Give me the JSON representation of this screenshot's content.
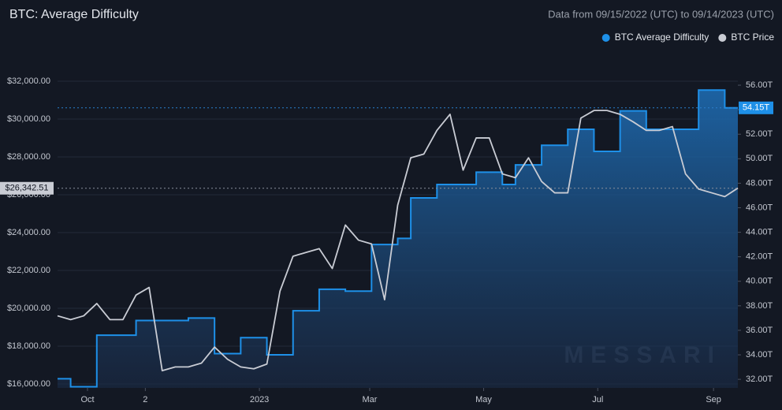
{
  "chart_data": {
    "type": "line",
    "title": "BTC: Average Difficulty",
    "subtitle": "Data from 09/15/2022 (UTC) to 09/14/2023 (UTC)",
    "watermark": "MESSARI",
    "xlim": [
      0,
      52
    ],
    "xticks": [
      {
        "value": 2.29,
        "label": "Oct"
      },
      {
        "value": 6.71,
        "label": "2"
      },
      {
        "value": 15.43,
        "label": "2023"
      },
      {
        "value": 23.86,
        "label": "Mar"
      },
      {
        "value": 32.57,
        "label": "May"
      },
      {
        "value": 41.29,
        "label": "Jul"
      },
      {
        "value": 50.14,
        "label": "Sep"
      }
    ],
    "ylim": [
      15790,
      32540
    ],
    "yticks": [
      {
        "value": 16000,
        "label": "$16,000.00"
      },
      {
        "value": 18000,
        "label": "$18,000.00"
      },
      {
        "value": 20000,
        "label": "$20,000.00"
      },
      {
        "value": 22000,
        "label": "$22,000.00"
      },
      {
        "value": 24000,
        "label": "$24,000.00"
      },
      {
        "value": 26000,
        "label": "$26,000.00"
      },
      {
        "value": 28000,
        "label": "$28,000.00"
      },
      {
        "value": 30000,
        "label": "$30,000.00"
      },
      {
        "value": 32000,
        "label": "$32,000.00"
      }
    ],
    "y2lim": [
      31.3,
      57.16
    ],
    "y2ticks": [
      {
        "value": 32,
        "label": "32.00T"
      },
      {
        "value": 34,
        "label": "34.00T"
      },
      {
        "value": 36,
        "label": "36.00T"
      },
      {
        "value": 38,
        "label": "38.00T"
      },
      {
        "value": 40,
        "label": "40.00T"
      },
      {
        "value": 42,
        "label": "42.00T"
      },
      {
        "value": 44,
        "label": "44.00T"
      },
      {
        "value": 46,
        "label": "46.00T"
      },
      {
        "value": 48,
        "label": "48.00T"
      },
      {
        "value": 50,
        "label": "50.00T"
      },
      {
        "value": 52,
        "label": "52.00T"
      },
      {
        "value": 54,
        "label": "54.00T"
      },
      {
        "value": 56,
        "label": "56.00T"
      }
    ],
    "grid": true,
    "legend": "top-right",
    "last_price": {
      "value": 26342.51,
      "label": "$26,342.51"
    },
    "last_difficulty": {
      "value": 54.15,
      "label": "54.15T"
    },
    "series": [
      {
        "name": "BTC Average Difficulty",
        "color": "#1e90e8",
        "axis": "y2",
        "style": "step-area",
        "values": [
          32.05,
          31.4,
          31.4,
          35.6,
          35.6,
          35.6,
          36.8,
          36.8,
          36.8,
          36.8,
          37.0,
          37.0,
          34.1,
          34.1,
          35.4,
          35.4,
          34.0,
          34.0,
          37.6,
          37.6,
          39.35,
          39.35,
          39.2,
          39.2,
          43.0,
          43.0,
          43.5,
          46.8,
          46.8,
          47.9,
          47.9,
          47.9,
          48.9,
          48.9,
          47.9,
          49.5,
          49.5,
          51.1,
          51.1,
          52.4,
          52.4,
          50.6,
          50.6,
          53.9,
          53.9,
          52.4,
          52.4,
          52.4,
          52.4,
          55.6,
          55.6,
          54.15,
          54.15
        ]
      },
      {
        "name": "BTC Price",
        "color": "#c9ccd4",
        "axis": "y",
        "style": "line",
        "values": [
          19600,
          19400,
          19600,
          20250,
          19400,
          19400,
          20700,
          21100,
          16700,
          16900,
          16900,
          17100,
          17950,
          17300,
          16900,
          16800,
          17050,
          20900,
          22750,
          22950,
          23150,
          22100,
          24400,
          23600,
          23400,
          20450,
          25450,
          27950,
          28150,
          29400,
          30250,
          27300,
          29000,
          29000,
          27100,
          26900,
          27950,
          26700,
          26100,
          26100,
          30050,
          30450,
          30450,
          30250,
          29850,
          29400,
          29400,
          29600,
          27100,
          26300,
          26100,
          25900,
          26350
        ]
      }
    ]
  }
}
